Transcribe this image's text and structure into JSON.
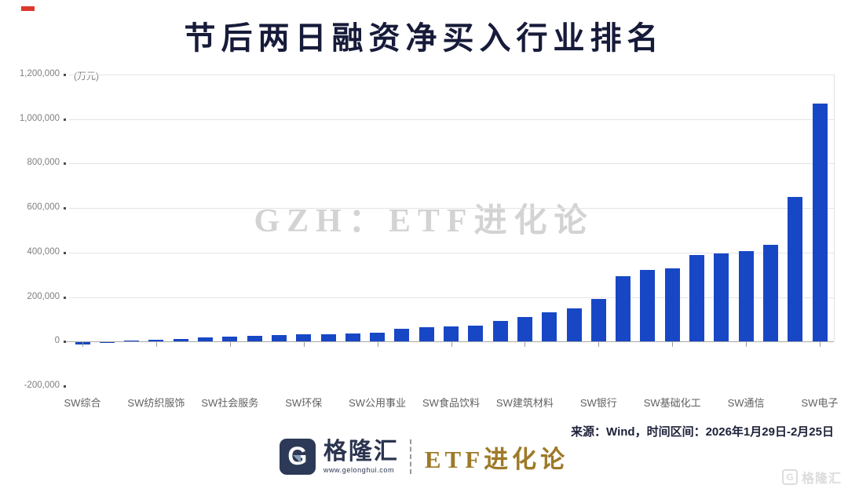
{
  "title": "节后两日融资净买入行业排名",
  "watermark": "GZH：ETF进化论",
  "source_note": "来源：Wind，时间区间：2026年1月29日-2月25日",
  "footer": {
    "brand_icon": "gelonghui-g-icon",
    "brand_name": "格隆汇",
    "brand_url": "www.gelonghui.com",
    "publication": "ETF进化论"
  },
  "corner_watermark": {
    "icon_letter": "G",
    "text": "格隆汇"
  },
  "chart_data": {
    "type": "bar",
    "title": "节后两日融资净买入行业排名",
    "unit_label": "(万元)",
    "xlabel": "",
    "ylabel": "万元",
    "ylim": [
      -200000,
      1200000
    ],
    "ytick_step": 200000,
    "ytick_labels": [
      "1,200,000",
      "1,000,000",
      "800,000",
      "600,000",
      "400,000",
      "200,000",
      "0",
      "-200,000"
    ],
    "grid": true,
    "legend": "none",
    "bar_color": "#1847C6",
    "values": [
      -8000,
      -3000,
      1500,
      7000,
      11000,
      19000,
      23000,
      27000,
      29000,
      31000,
      33000,
      35000,
      40000,
      56000,
      65000,
      67000,
      71000,
      92000,
      110000,
      130000,
      150000,
      192000,
      295000,
      322000,
      330000,
      390000,
      395000,
      405000,
      435000,
      650000,
      1070000
    ],
    "xtick_labels": [
      {
        "bar_index": 0,
        "label": "SW综合"
      },
      {
        "bar_index": 3,
        "label": "SW纺织服饰"
      },
      {
        "bar_index": 6,
        "label": "SW社会服务"
      },
      {
        "bar_index": 9,
        "label": "SW环保"
      },
      {
        "bar_index": 12,
        "label": "SW公用事业"
      },
      {
        "bar_index": 15,
        "label": "SW食品饮料"
      },
      {
        "bar_index": 18,
        "label": "SW建筑材料"
      },
      {
        "bar_index": 21,
        "label": "SW银行"
      },
      {
        "bar_index": 24,
        "label": "SW基础化工"
      },
      {
        "bar_index": 27,
        "label": "SW通信"
      },
      {
        "bar_index": 30,
        "label": "SW电子"
      }
    ]
  }
}
